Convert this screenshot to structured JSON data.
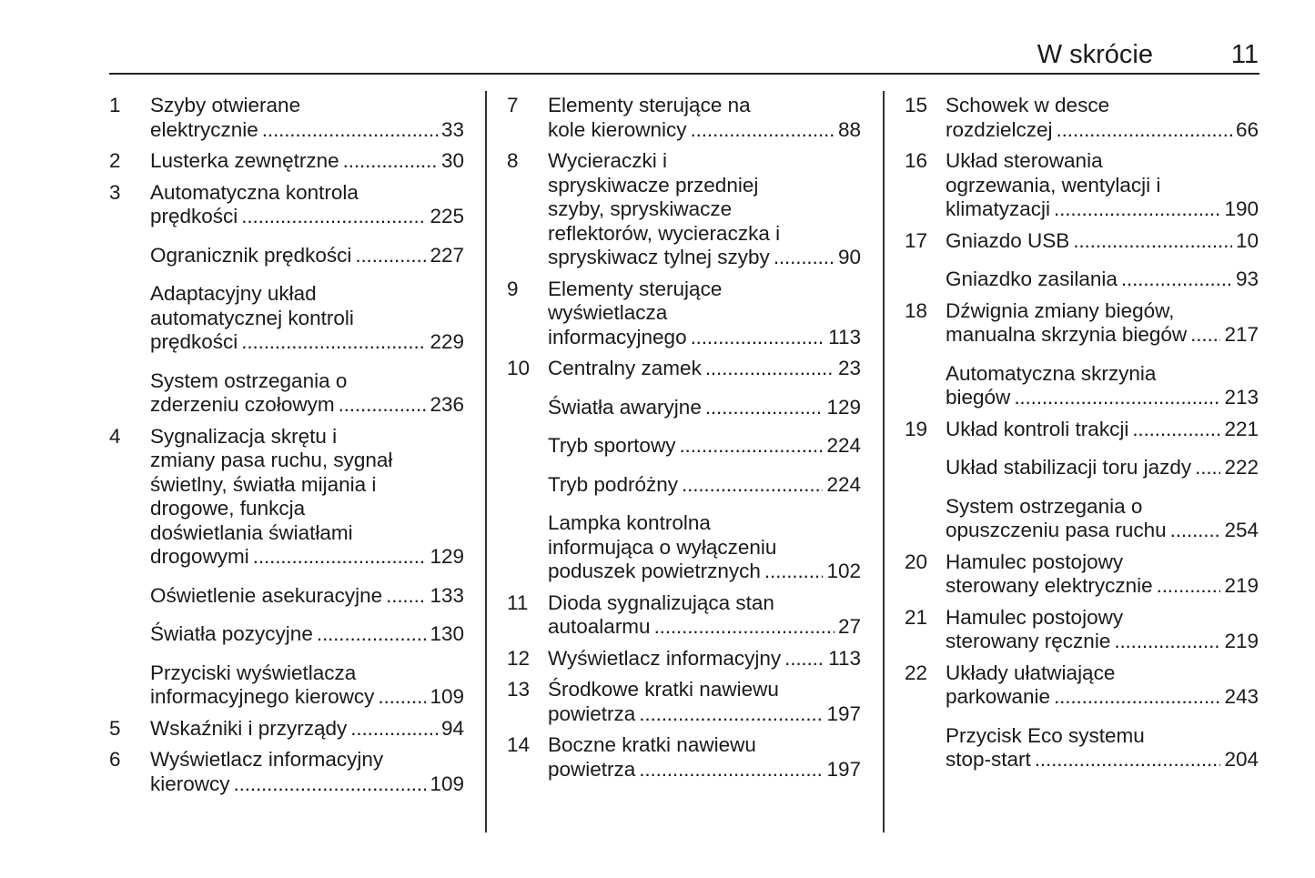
{
  "header": {
    "title": "W skrócie",
    "page": "11"
  },
  "columns": [
    [
      {
        "num": "1",
        "lines": [
          "Szyby otwierane",
          "elektrycznie"
        ],
        "page": "33"
      },
      {
        "num": "2",
        "lines": [
          "Lusterka zewnętrzne"
        ],
        "page": "30"
      },
      {
        "num": "3",
        "lines": [
          "Automatyczna kontrola",
          "prędkości"
        ],
        "page": "225"
      },
      {
        "num": "",
        "lines": [
          "Ogranicznik prędkości"
        ],
        "page": "227"
      },
      {
        "num": "",
        "lines": [
          "Adaptacyjny układ",
          "automatycznej kontroli",
          "prędkości"
        ],
        "page": "229"
      },
      {
        "num": "",
        "lines": [
          "System ostrzegania o",
          "zderzeniu czołowym"
        ],
        "page": "236"
      },
      {
        "num": "4",
        "lines": [
          "Sygnalizacja skrętu i",
          "zmiany pasa ruchu, sygnał",
          "świetlny, światła mijania i",
          "drogowe, funkcja",
          "doświetlania światłami",
          "drogowymi"
        ],
        "page": "129"
      },
      {
        "num": "",
        "lines": [
          "Oświetlenie asekuracyjne"
        ],
        "page": "133"
      },
      {
        "num": "",
        "lines": [
          "Światła pozycyjne"
        ],
        "page": "130"
      },
      {
        "num": "",
        "lines": [
          "Przyciski wyświetlacza",
          "informacyjnego kierowcy"
        ],
        "page": "109"
      },
      {
        "num": "5",
        "lines": [
          "Wskaźniki i przyrządy"
        ],
        "page": "94"
      },
      {
        "num": "6",
        "lines": [
          "Wyświetlacz informacyjny",
          "kierowcy"
        ],
        "page": "109"
      }
    ],
    [
      {
        "num": "7",
        "lines": [
          "Elementy sterujące na",
          "kole kierownicy"
        ],
        "page": "88"
      },
      {
        "num": "8",
        "lines": [
          "Wycieraczki i",
          "spryskiwacze przedniej",
          "szyby, spryskiwacze",
          "reflektorów, wycieraczka i",
          "spryskiwacz tylnej szyby"
        ],
        "page": "90"
      },
      {
        "num": "9",
        "lines": [
          "Elementy sterujące",
          "wyświetlacza",
          "informacyjnego"
        ],
        "page": "113"
      },
      {
        "num": "10",
        "lines": [
          "Centralny zamek"
        ],
        "page": "23"
      },
      {
        "num": "",
        "lines": [
          "Światła awaryjne"
        ],
        "page": "129"
      },
      {
        "num": "",
        "lines": [
          "Tryb sportowy"
        ],
        "page": "224"
      },
      {
        "num": "",
        "lines": [
          "Tryb podróżny"
        ],
        "page": "224"
      },
      {
        "num": "",
        "lines": [
          "Lampka kontrolna",
          "informująca o wyłączeniu",
          "poduszek powietrznych"
        ],
        "page": "102"
      },
      {
        "num": "11",
        "lines": [
          "Dioda sygnalizująca stan",
          "autoalarmu"
        ],
        "page": "27"
      },
      {
        "num": "12",
        "lines": [
          "Wyświetlacz informacyjny"
        ],
        "page": "113"
      },
      {
        "num": "13",
        "lines": [
          "Środkowe kratki nawiewu",
          "powietrza"
        ],
        "page": "197"
      },
      {
        "num": "14",
        "lines": [
          "Boczne kratki nawiewu",
          "powietrza"
        ],
        "page": "197"
      }
    ],
    [
      {
        "num": "15",
        "lines": [
          "Schowek w desce",
          "rozdzielczej"
        ],
        "page": "66"
      },
      {
        "num": "16",
        "lines": [
          "Układ sterowania",
          "ogrzewania, wentylacji i",
          "klimatyzacji"
        ],
        "page": "190"
      },
      {
        "num": "17",
        "lines": [
          "Gniazdo USB"
        ],
        "page": "10"
      },
      {
        "num": "",
        "lines": [
          "Gniazdko zasilania"
        ],
        "page": "93"
      },
      {
        "num": "18",
        "lines": [
          "Dźwignia zmiany biegów,",
          "manualna skrzynia biegów"
        ],
        "page": "217"
      },
      {
        "num": "",
        "lines": [
          "Automatyczna skrzynia",
          "biegów"
        ],
        "page": "213"
      },
      {
        "num": "19",
        "lines": [
          "Układ kontroli trakcji"
        ],
        "page": "221"
      },
      {
        "num": "",
        "lines": [
          "Układ stabilizacji toru jazdy"
        ],
        "page": "222"
      },
      {
        "num": "",
        "lines": [
          "System ostrzegania o",
          "opuszczeniu pasa ruchu"
        ],
        "page": "254"
      },
      {
        "num": "20",
        "lines": [
          "Hamulec postojowy",
          "sterowany elektrycznie"
        ],
        "page": "219"
      },
      {
        "num": "21",
        "lines": [
          "Hamulec postojowy",
          "sterowany ręcznie"
        ],
        "page": "219"
      },
      {
        "num": "22",
        "lines": [
          "Układy ułatwiające",
          "parkowanie"
        ],
        "page": "243"
      },
      {
        "num": "",
        "lines": [
          "Przycisk Eco systemu",
          "stop-start"
        ],
        "page": "204"
      }
    ]
  ]
}
